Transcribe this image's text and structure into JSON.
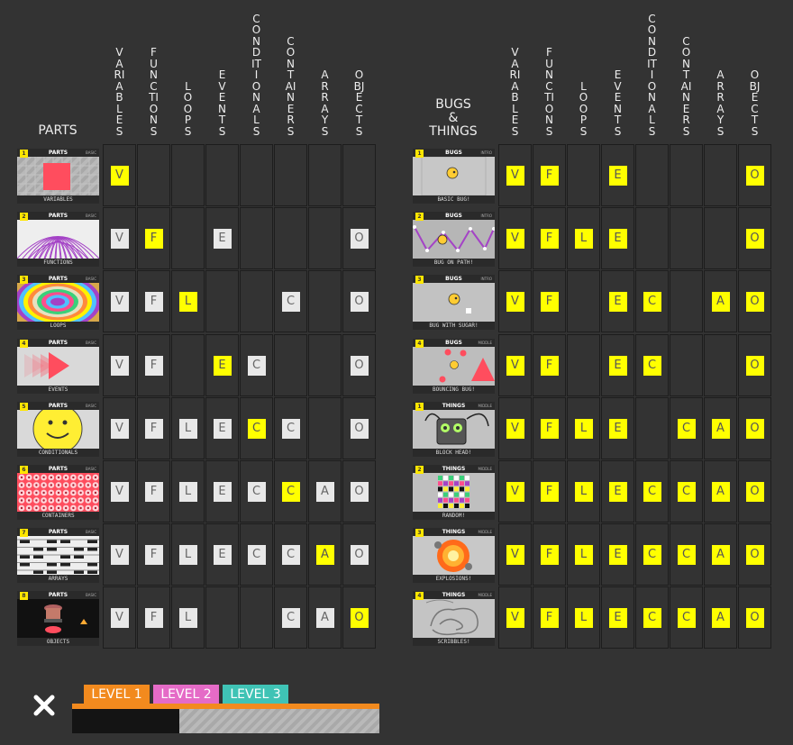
{
  "concepts": [
    "VARIABLES",
    "FUNCTIONS",
    "LOOPS",
    "EVENTS",
    "CONDITIONALS",
    "CONTAINERS",
    "ARRAYS",
    "OBJECTS"
  ],
  "letters": [
    "V",
    "F",
    "L",
    "E",
    "C",
    "C",
    "A",
    "O"
  ],
  "left": {
    "title": "PARTS",
    "rows": [
      {
        "num": "1",
        "tag": "PARTS",
        "level": "BASIC",
        "caption": "VARIABLES",
        "art": "variables",
        "cells": [
          "active",
          "",
          "",
          "",
          "",
          "",
          "",
          ""
        ]
      },
      {
        "num": "2",
        "tag": "PARTS",
        "level": "BASIC",
        "caption": "FUNCTIONS",
        "art": "functions",
        "cells": [
          "inactive",
          "active",
          "",
          "inactive",
          "",
          "",
          "",
          "inactive"
        ]
      },
      {
        "num": "3",
        "tag": "PARTS",
        "level": "BASIC",
        "caption": "LOOPS",
        "art": "loops",
        "cells": [
          "inactive",
          "inactive",
          "active",
          "",
          "",
          "inactive",
          "",
          "inactive"
        ]
      },
      {
        "num": "4",
        "tag": "PARTS",
        "level": "BASIC",
        "caption": "EVENTS",
        "art": "events",
        "cells": [
          "inactive",
          "inactive",
          "",
          "active",
          "inactive",
          "",
          "",
          "inactive"
        ]
      },
      {
        "num": "5",
        "tag": "PARTS",
        "level": "BASIC",
        "caption": "CONDITIONALS",
        "art": "conditionals",
        "cells": [
          "inactive",
          "inactive",
          "inactive",
          "inactive",
          "active",
          "inactive",
          "",
          "inactive"
        ]
      },
      {
        "num": "6",
        "tag": "PARTS",
        "level": "BASIC",
        "caption": "CONTAINERS",
        "art": "containers",
        "cells": [
          "inactive",
          "inactive",
          "inactive",
          "inactive",
          "inactive",
          "active",
          "inactive",
          "inactive"
        ]
      },
      {
        "num": "7",
        "tag": "PARTS",
        "level": "BASIC",
        "caption": "ARRAYS",
        "art": "arrays",
        "cells": [
          "inactive",
          "inactive",
          "inactive",
          "inactive",
          "inactive",
          "inactive",
          "active",
          "inactive"
        ]
      },
      {
        "num": "8",
        "tag": "PARTS",
        "level": "BASIC",
        "caption": "OBJECTS",
        "art": "objects",
        "cells": [
          "inactive",
          "inactive",
          "inactive",
          "",
          "",
          "inactive",
          "inactive",
          "active"
        ]
      }
    ]
  },
  "right": {
    "title_lines": [
      "BUGS",
      "&",
      "THINGS"
    ],
    "rows": [
      {
        "num": "1",
        "tag": "BUGS",
        "level": "INTRO",
        "caption": "BASIC BUG!",
        "art": "basicbug",
        "cells": [
          "active",
          "active",
          "",
          "active",
          "",
          "",
          "",
          "active"
        ]
      },
      {
        "num": "2",
        "tag": "BUGS",
        "level": "INTRO",
        "caption": "BUG ON PATH!",
        "art": "bugpath",
        "cells": [
          "active",
          "active",
          "active",
          "active",
          "",
          "",
          "",
          "active"
        ]
      },
      {
        "num": "3",
        "tag": "BUGS",
        "level": "INTRO",
        "caption": "BUG WITH SUGAR!",
        "art": "bugsugar",
        "cells": [
          "active",
          "active",
          "",
          "active",
          "active",
          "",
          "active",
          "active"
        ]
      },
      {
        "num": "4",
        "tag": "BUGS",
        "level": "MIDDLE",
        "caption": "BOUNCING BUG!",
        "art": "bouncing",
        "cells": [
          "active",
          "active",
          "",
          "active",
          "active",
          "",
          "",
          "active"
        ]
      },
      {
        "num": "1",
        "tag": "THINGS",
        "level": "MIDDLE",
        "caption": "BLOCK HEAD!",
        "art": "blockhead",
        "cells": [
          "active",
          "active",
          "active",
          "active",
          "",
          "active",
          "active",
          "active"
        ]
      },
      {
        "num": "2",
        "tag": "THINGS",
        "level": "MIDDLE",
        "caption": "RANDOM!",
        "art": "random",
        "cells": [
          "active",
          "active",
          "active",
          "active",
          "active",
          "active",
          "active",
          "active"
        ]
      },
      {
        "num": "3",
        "tag": "THINGS",
        "level": "MIDDLE",
        "caption": "EXPLOSIONS!",
        "art": "explosions",
        "cells": [
          "active",
          "active",
          "active",
          "active",
          "active",
          "active",
          "active",
          "active"
        ]
      },
      {
        "num": "4",
        "tag": "THINGS",
        "level": "MIDDLE",
        "caption": "SCRIBBLES!",
        "art": "scribbles",
        "cells": [
          "active",
          "active",
          "active",
          "active",
          "active",
          "active",
          "active",
          "active"
        ]
      }
    ]
  },
  "footer": {
    "close_icon": "close-icon",
    "levels": [
      {
        "label": "LEVEL 1",
        "color": "#f28a1e"
      },
      {
        "label": "LEVEL 2",
        "color": "#e56bc7"
      },
      {
        "label": "LEVEL 3",
        "color": "#3fc3b5"
      }
    ],
    "progress": 0.35
  },
  "colors": {
    "background": "#333333",
    "active_badge": "#ffff00",
    "inactive_badge": "#e8e8e8",
    "level1": "#f28a1e",
    "level2": "#e56bc7",
    "level3": "#3fc3b5"
  }
}
